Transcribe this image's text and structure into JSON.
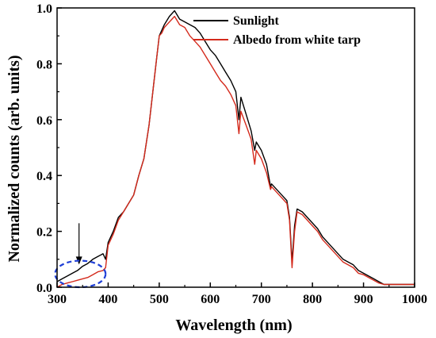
{
  "chart_data": {
    "type": "line",
    "xlabel": "Wavelength (nm)",
    "ylabel": "Normalized counts (arb. units)",
    "xlim": [
      300,
      1000
    ],
    "ylim": [
      0.0,
      1.0
    ],
    "x_ticks": [
      "300",
      "400",
      "500",
      "600",
      "700",
      "800",
      "900",
      "1000"
    ],
    "y_ticks": [
      "0.0",
      "0.2",
      "0.4",
      "0.6",
      "0.8",
      "1.0"
    ],
    "grid": false,
    "legend_position": "top-right",
    "annotations": [
      {
        "type": "arrow",
        "pointing": "down",
        "at_x": 343,
        "at_y": 0.07
      },
      {
        "type": "dashed-ellipse",
        "color": "#1f3fd6",
        "x_range": [
          296,
          395
        ],
        "y_range": [
          0.0,
          0.095
        ]
      }
    ],
    "series": [
      {
        "name": "Sunlight",
        "color": "#000000",
        "points": [
          [
            300,
            0.02
          ],
          [
            310,
            0.03
          ],
          [
            320,
            0.04
          ],
          [
            330,
            0.05
          ],
          [
            340,
            0.06
          ],
          [
            350,
            0.075
          ],
          [
            360,
            0.085
          ],
          [
            370,
            0.1
          ],
          [
            380,
            0.11
          ],
          [
            390,
            0.12
          ],
          [
            395,
            0.1
          ],
          [
            400,
            0.16
          ],
          [
            410,
            0.2
          ],
          [
            420,
            0.25
          ],
          [
            430,
            0.27
          ],
          [
            440,
            0.3
          ],
          [
            450,
            0.33
          ],
          [
            460,
            0.4
          ],
          [
            470,
            0.46
          ],
          [
            480,
            0.58
          ],
          [
            490,
            0.74
          ],
          [
            495,
            0.82
          ],
          [
            500,
            0.9
          ],
          [
            505,
            0.92
          ],
          [
            510,
            0.94
          ],
          [
            520,
            0.97
          ],
          [
            530,
            0.99
          ],
          [
            540,
            0.96
          ],
          [
            550,
            0.95
          ],
          [
            560,
            0.94
          ],
          [
            570,
            0.93
          ],
          [
            580,
            0.91
          ],
          [
            590,
            0.88
          ],
          [
            600,
            0.85
          ],
          [
            610,
            0.83
          ],
          [
            620,
            0.8
          ],
          [
            630,
            0.77
          ],
          [
            640,
            0.74
          ],
          [
            650,
            0.7
          ],
          [
            656,
            0.6
          ],
          [
            660,
            0.68
          ],
          [
            670,
            0.62
          ],
          [
            680,
            0.56
          ],
          [
            687,
            0.49
          ],
          [
            690,
            0.52
          ],
          [
            700,
            0.49
          ],
          [
            710,
            0.44
          ],
          [
            718,
            0.36
          ],
          [
            720,
            0.37
          ],
          [
            730,
            0.35
          ],
          [
            740,
            0.33
          ],
          [
            750,
            0.31
          ],
          [
            755,
            0.25
          ],
          [
            760,
            0.09
          ],
          [
            765,
            0.22
          ],
          [
            770,
            0.28
          ],
          [
            780,
            0.27
          ],
          [
            790,
            0.25
          ],
          [
            800,
            0.23
          ],
          [
            810,
            0.21
          ],
          [
            820,
            0.18
          ],
          [
            830,
            0.16
          ],
          [
            840,
            0.14
          ],
          [
            850,
            0.12
          ],
          [
            860,
            0.1
          ],
          [
            870,
            0.09
          ],
          [
            880,
            0.08
          ],
          [
            890,
            0.06
          ],
          [
            900,
            0.05
          ],
          [
            910,
            0.04
          ],
          [
            920,
            0.03
          ],
          [
            930,
            0.02
          ],
          [
            940,
            0.01
          ],
          [
            950,
            0.01
          ],
          [
            960,
            0.01
          ],
          [
            970,
            0.01
          ],
          [
            980,
            0.01
          ],
          [
            990,
            0.01
          ],
          [
            1000,
            0.01
          ]
        ]
      },
      {
        "name": "Albedo from white tarp",
        "color": "#d42a1c",
        "points": [
          [
            300,
            0.0
          ],
          [
            310,
            0.01
          ],
          [
            320,
            0.015
          ],
          [
            330,
            0.02
          ],
          [
            340,
            0.025
          ],
          [
            350,
            0.03
          ],
          [
            360,
            0.035
          ],
          [
            370,
            0.045
          ],
          [
            380,
            0.055
          ],
          [
            390,
            0.06
          ],
          [
            395,
            0.07
          ],
          [
            400,
            0.15
          ],
          [
            410,
            0.19
          ],
          [
            420,
            0.24
          ],
          [
            430,
            0.27
          ],
          [
            440,
            0.3
          ],
          [
            450,
            0.33
          ],
          [
            460,
            0.4
          ],
          [
            470,
            0.46
          ],
          [
            480,
            0.58
          ],
          [
            490,
            0.74
          ],
          [
            495,
            0.82
          ],
          [
            500,
            0.9
          ],
          [
            505,
            0.91
          ],
          [
            510,
            0.93
          ],
          [
            520,
            0.95
          ],
          [
            530,
            0.97
          ],
          [
            540,
            0.94
          ],
          [
            550,
            0.93
          ],
          [
            560,
            0.9
          ],
          [
            570,
            0.88
          ],
          [
            580,
            0.86
          ],
          [
            590,
            0.83
          ],
          [
            600,
            0.8
          ],
          [
            610,
            0.77
          ],
          [
            620,
            0.74
          ],
          [
            630,
            0.72
          ],
          [
            640,
            0.69
          ],
          [
            650,
            0.65
          ],
          [
            656,
            0.55
          ],
          [
            660,
            0.63
          ],
          [
            670,
            0.58
          ],
          [
            680,
            0.53
          ],
          [
            687,
            0.44
          ],
          [
            690,
            0.49
          ],
          [
            700,
            0.46
          ],
          [
            710,
            0.41
          ],
          [
            718,
            0.35
          ],
          [
            720,
            0.36
          ],
          [
            730,
            0.34
          ],
          [
            740,
            0.32
          ],
          [
            750,
            0.3
          ],
          [
            755,
            0.24
          ],
          [
            760,
            0.07
          ],
          [
            765,
            0.2
          ],
          [
            770,
            0.27
          ],
          [
            780,
            0.26
          ],
          [
            790,
            0.24
          ],
          [
            800,
            0.22
          ],
          [
            810,
            0.2
          ],
          [
            820,
            0.17
          ],
          [
            830,
            0.15
          ],
          [
            840,
            0.13
          ],
          [
            850,
            0.11
          ],
          [
            860,
            0.09
          ],
          [
            870,
            0.08
          ],
          [
            880,
            0.07
          ],
          [
            890,
            0.05
          ],
          [
            900,
            0.045
          ],
          [
            910,
            0.035
          ],
          [
            920,
            0.025
          ],
          [
            930,
            0.015
          ],
          [
            940,
            0.01
          ],
          [
            950,
            0.01
          ],
          [
            960,
            0.01
          ],
          [
            970,
            0.01
          ],
          [
            980,
            0.01
          ],
          [
            990,
            0.01
          ],
          [
            1000,
            0.01
          ]
        ]
      }
    ]
  }
}
